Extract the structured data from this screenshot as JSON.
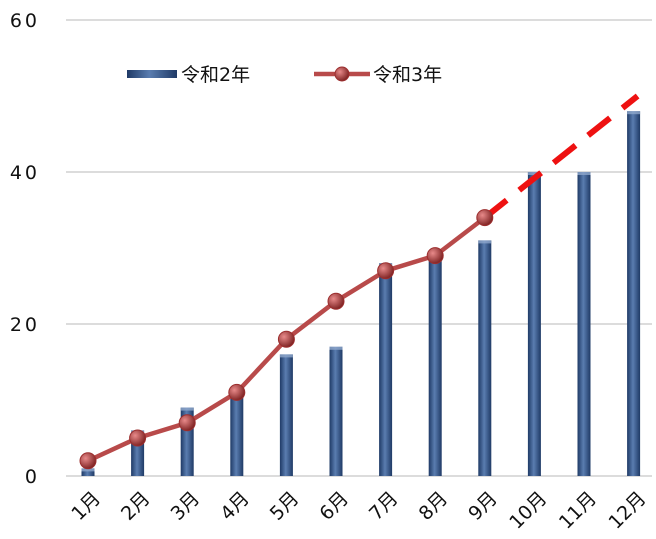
{
  "chart_data": {
    "type": "bar",
    "categories": [
      "1月",
      "2月",
      "3月",
      "4月",
      "5月",
      "6月",
      "7月",
      "8月",
      "9月",
      "10月",
      "11月",
      "12月"
    ],
    "series": [
      {
        "name": "令和2年",
        "type": "bar",
        "values": [
          1,
          6,
          9,
          11,
          16,
          17,
          28,
          29,
          31,
          40,
          40,
          48
        ]
      },
      {
        "name": "令和3年",
        "type": "line",
        "values": [
          2,
          5,
          7,
          11,
          18,
          23,
          27,
          29,
          34,
          null,
          null,
          null
        ]
      }
    ],
    "projection": {
      "style": "dashed",
      "from": {
        "category": "9月",
        "value": 34
      },
      "to": {
        "category": "12月",
        "value": 50
      }
    },
    "ylim": [
      0,
      60
    ],
    "yticks": [
      "0",
      "20",
      "40",
      "60"
    ],
    "grid": true,
    "legend_placement": "top-left",
    "colors": {
      "bar": "#3f5f8f",
      "bar_dark": "#1f3a66",
      "line": "#b84a4a",
      "marker": "#9c2e2e",
      "projection": "#ee1111",
      "grid": "#d0d0d0"
    }
  }
}
